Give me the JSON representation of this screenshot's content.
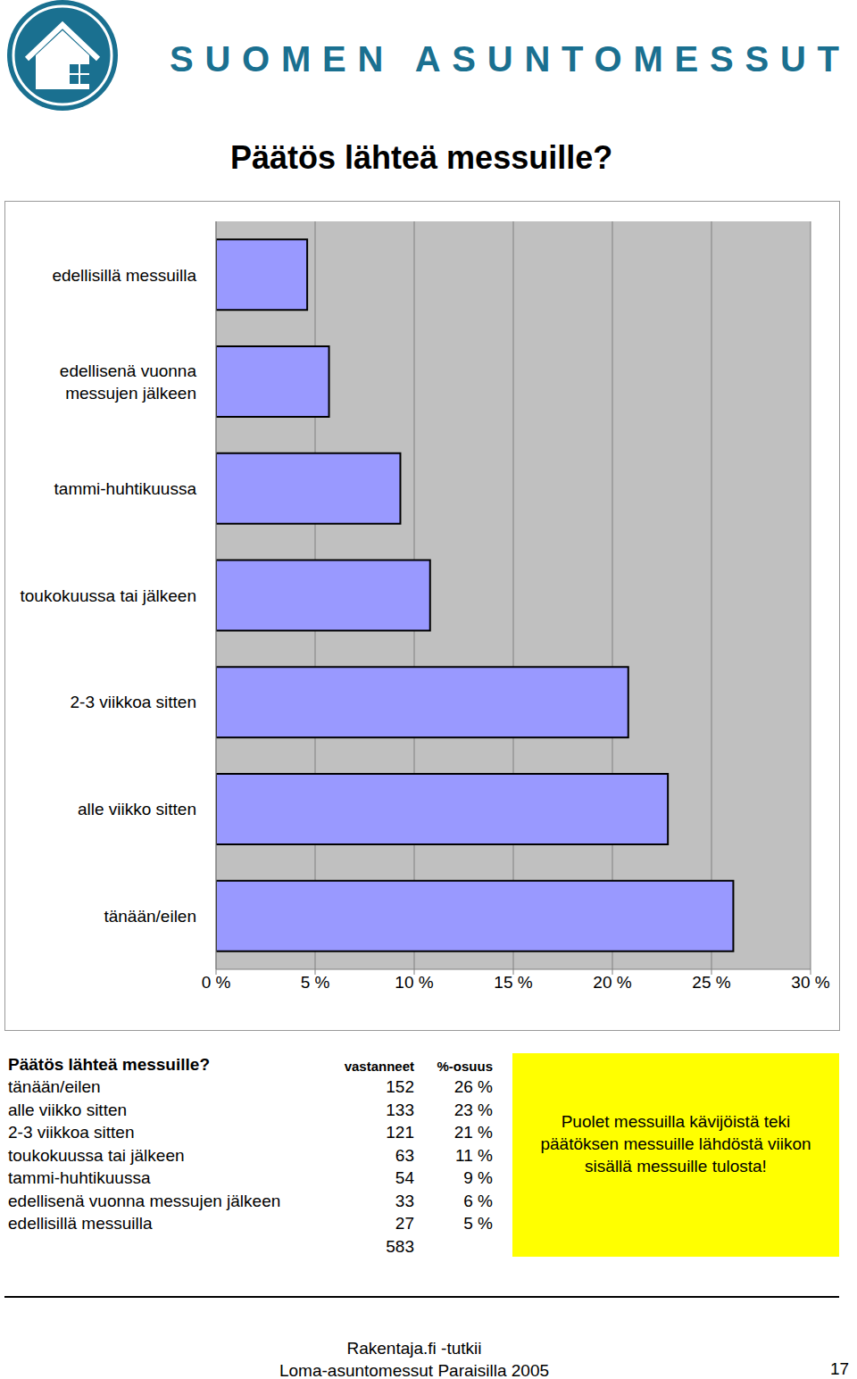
{
  "header": {
    "brand": "SUOMEN ASUNTOMESSUT"
  },
  "chart_data": {
    "type": "bar",
    "title": "Päätös lähteä messuille?",
    "orientation": "horizontal",
    "categories": [
      "edellisillä messuilla",
      "edellisenä vuonna messujen jälkeen",
      "tammi-huhtikuussa",
      "toukokuussa tai jälkeen",
      "2-3 viikkoa sitten",
      "alle viikko sitten",
      "tänään/eilen"
    ],
    "values": [
      4.6,
      5.7,
      9.3,
      10.8,
      20.8,
      22.8,
      26.1
    ],
    "color": "#9999ff",
    "xlim": [
      0,
      30
    ],
    "xticks": [
      {
        "value": 0,
        "label": "0 %"
      },
      {
        "value": 5,
        "label": "5 %"
      },
      {
        "value": 10,
        "label": "10 %"
      },
      {
        "value": 15,
        "label": "15 %"
      },
      {
        "value": 20,
        "label": "20 %"
      },
      {
        "value": 25,
        "label": "25 %"
      },
      {
        "value": 30,
        "label": "30 %"
      }
    ],
    "grid": true
  },
  "table": {
    "title": "Päätös lähteä messuille?",
    "columns": [
      "vastanneet",
      "%-osuus"
    ],
    "rows": [
      [
        "tänään/eilen",
        152,
        "26 %"
      ],
      [
        "alle viikko sitten",
        133,
        "23 %"
      ],
      [
        "2-3 viikkoa sitten",
        121,
        "21 %"
      ],
      [
        "toukokuussa tai jälkeen",
        63,
        "11 %"
      ],
      [
        "tammi-huhtikuussa",
        54,
        "9 %"
      ],
      [
        "edellisenä vuonna messujen jälkeen",
        33,
        "6 %"
      ],
      [
        "edellisillä messuilla",
        27,
        "5 %"
      ]
    ],
    "total": 583
  },
  "note": "Puolet messuilla kävijöistä teki päätöksen messuille lähdöstä viikon sisällä messuille tulosta!",
  "footer": {
    "source": "Rakentaja.fi -tutkii",
    "event": "Loma-asuntomessut Paraisilla 2005",
    "page": 17
  }
}
